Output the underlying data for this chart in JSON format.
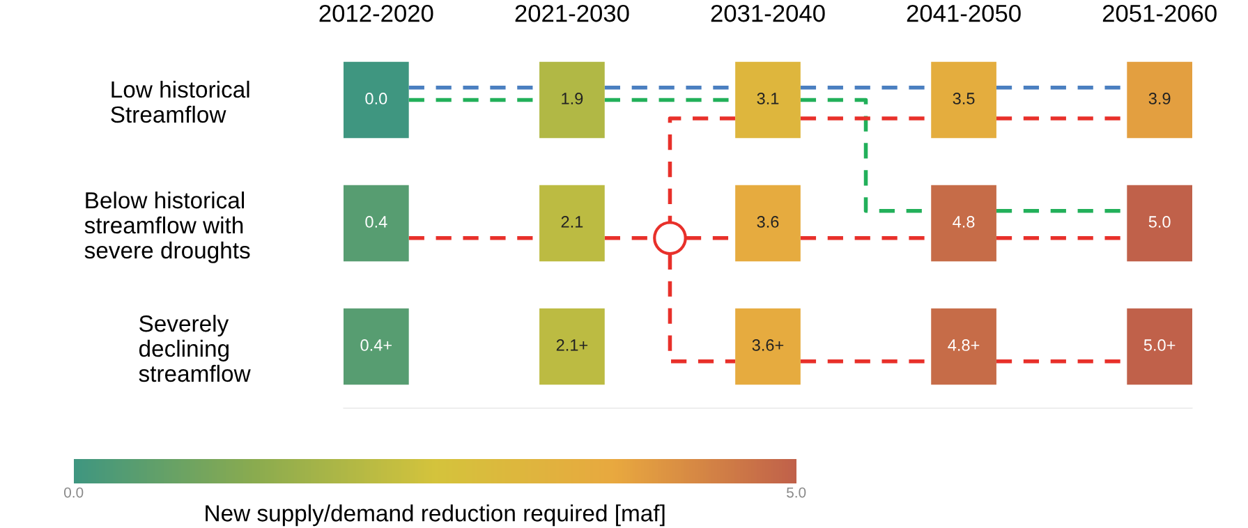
{
  "chart_data": {
    "type": "heatmap",
    "categories": [
      "2012-2020",
      null,
      null,
      "2021-2030",
      null,
      null,
      "2031-2040",
      null,
      null,
      "2041-2050",
      null,
      null,
      "2051-2060"
    ],
    "y_categories": [
      "Low historical\nStreamflow",
      "Below historical\nstreamflow with\nsevere droughts",
      "Severely\ndeclining\nstreamflow"
    ],
    "cells": [
      [
        0.0,
        null,
        null,
        1.9,
        null,
        null,
        3.1,
        null,
        null,
        3.5,
        null,
        null,
        3.9
      ],
      [
        0.4,
        null,
        null,
        2.1,
        null,
        null,
        3.6,
        null,
        null,
        4.8,
        null,
        null,
        5.0
      ],
      [
        0.4,
        null,
        null,
        2.1,
        null,
        null,
        3.6,
        null,
        null,
        4.8,
        null,
        null,
        5.0
      ]
    ],
    "cell_labels": [
      [
        "0.0",
        null,
        null,
        "1.9",
        null,
        null,
        "3.1",
        null,
        null,
        "3.5",
        null,
        null,
        "3.9"
      ],
      [
        "0.4",
        null,
        null,
        "2.1",
        null,
        null,
        "3.6",
        null,
        null,
        "4.8",
        null,
        null,
        "5.0"
      ],
      [
        "0.4+",
        null,
        null,
        "2.1+",
        null,
        null,
        "3.6+",
        null,
        null,
        "4.8+",
        null,
        null,
        "5.0+"
      ]
    ],
    "clim": [
      0,
      5
    ],
    "cticks": [
      {
        "value": 0,
        "label": "0.0"
      },
      {
        "value": 5,
        "label": "5.0"
      }
    ],
    "clabel": "New supply/demand reduction required [maf]",
    "colors": [
      "#3f9680",
      "#8aab4f",
      "#d4c33c",
      "#e8a83f",
      "#c0614a"
    ]
  }
}
